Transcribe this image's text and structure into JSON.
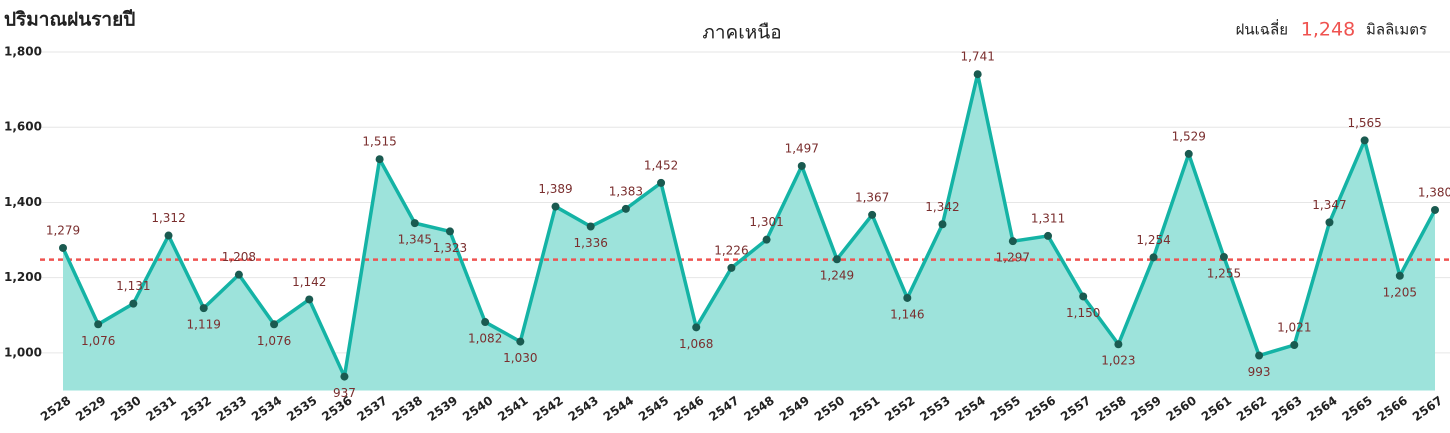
{
  "chart_data": {
    "type": "line",
    "title": "ปริมาณฝนรายปี",
    "subtitle": "ภาคเหนือ",
    "average": {
      "value": 1248,
      "label": "1,248",
      "prefix": "ฝนเฉลี่ย",
      "unit": "มิลลิเมตร",
      "color": "#ef5350"
    },
    "categories": [
      "2528",
      "2529",
      "2530",
      "2531",
      "2532",
      "2533",
      "2534",
      "2535",
      "2536",
      "2537",
      "2538",
      "2539",
      "2540",
      "2541",
      "2542",
      "2543",
      "2544",
      "2545",
      "2546",
      "2547",
      "2548",
      "2549",
      "2550",
      "2551",
      "2552",
      "2553",
      "2554",
      "2555",
      "2556",
      "2557",
      "2558",
      "2559",
      "2560",
      "2561",
      "2562",
      "2563",
      "2564",
      "2565",
      "2566",
      "2567"
    ],
    "series": [
      {
        "color": "#14b3a5",
        "fill": "#9de3db",
        "marker_color": "#1a5a50",
        "values": [
          1279,
          1076,
          1131,
          1312,
          1119,
          1208,
          1076,
          1142,
          937,
          1515,
          1345,
          1323,
          1082,
          1030,
          1389,
          1336,
          1383,
          1452,
          1068,
          1226,
          1301,
          1497,
          1249,
          1367,
          1146,
          1342,
          1741,
          1297,
          1311,
          1150,
          1023,
          1254,
          1529,
          1255,
          993,
          1021,
          1347,
          1565,
          1205,
          1380
        ],
        "value_labels": [
          "1,279",
          "1,076",
          "1,131",
          "1,312",
          "1,119",
          "1,208",
          "1,076",
          "1,142",
          "937",
          "1,515",
          "1,345",
          "1,323",
          "1,082",
          "1,030",
          "1,389",
          "1,336",
          "1,383",
          "1,452",
          "1,068",
          "1,226",
          "1,301",
          "1,497",
          "1,249",
          "1,367",
          "1,146",
          "1,342",
          "1,741",
          "1,297",
          "1,311",
          "1,150",
          "1,023",
          "1,254",
          "1,529",
          "1,255",
          "993",
          "1,021",
          "1,347",
          "1,565",
          "1,205",
          "1,380"
        ]
      }
    ],
    "ylim": [
      900,
      1800
    ],
    "yticks": [
      {
        "value": 1000,
        "label": "1,000"
      },
      {
        "value": 1200,
        "label": "1,200"
      },
      {
        "value": 1400,
        "label": "1,400"
      },
      {
        "value": 1600,
        "label": "1,600"
      },
      {
        "value": 1800,
        "label": "1,800"
      }
    ],
    "grid": true
  }
}
